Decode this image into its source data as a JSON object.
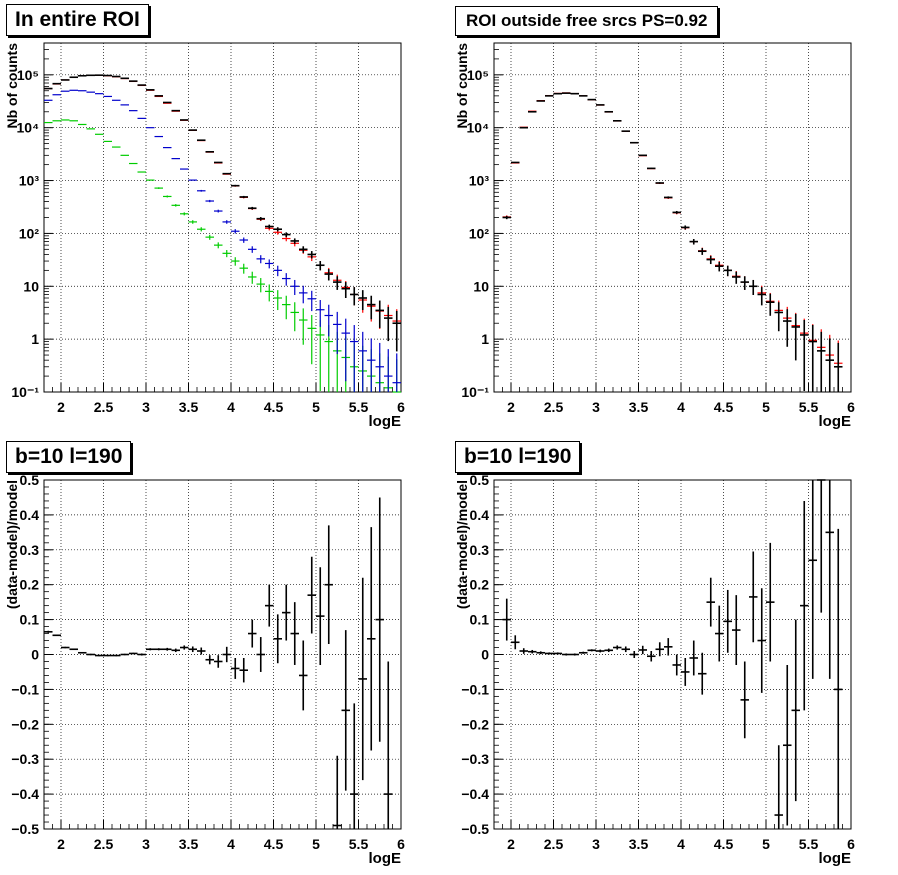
{
  "colors": {
    "data": "#000000",
    "total_model": "#ff0000",
    "component_blue": "#0000cc",
    "component_green": "#00cc00",
    "grid": "#000000",
    "frame": "#000000"
  },
  "chart_data": [
    {
      "type": "scatter",
      "title": "In entire ROI",
      "xlabel": "logE",
      "ylabel": "Nb of counts",
      "xlim": [
        1.8,
        6.0
      ],
      "ylim": [
        0.1,
        400000
      ],
      "yscale": "log",
      "grid": true,
      "xticks": [
        "2",
        "2.5",
        "3",
        "3.5",
        "4",
        "4.5",
        "5",
        "5.5",
        "6"
      ],
      "yticks": [
        "10⁻¹",
        "1",
        "10",
        "10²",
        "10³",
        "10⁴",
        "10⁵"
      ],
      "binwidth": 0.1,
      "series": [
        {
          "key": "data",
          "style": "cross",
          "x": [
            1.85,
            1.95,
            2.05,
            2.15,
            2.25,
            2.35,
            2.45,
            2.55,
            2.65,
            2.75,
            2.85,
            2.95,
            3.05,
            3.15,
            3.25,
            3.35,
            3.45,
            3.55,
            3.65,
            3.75,
            3.85,
            3.95,
            4.05,
            4.15,
            4.25,
            4.35,
            4.45,
            4.55,
            4.65,
            4.75,
            4.85,
            4.95,
            5.05,
            5.15,
            5.25,
            5.35,
            5.45,
            5.55,
            5.65,
            5.75,
            5.85,
            5.95
          ],
          "y": [
            55000,
            68000,
            80000,
            90000,
            96000,
            98000,
            98500,
            97000,
            93000,
            86000,
            76000,
            64000,
            52000,
            40000,
            30000,
            21000,
            14000,
            9000,
            5800,
            3500,
            2200,
            1350,
            800,
            490,
            300,
            190,
            135,
            120,
            95,
            72,
            50,
            40,
            25,
            17,
            12,
            9,
            7,
            6,
            4.5,
            3.5,
            2.5,
            2
          ]
        },
        {
          "key": "total_model",
          "style": "bar",
          "x": [
            1.85,
            1.95,
            2.05,
            2.15,
            2.25,
            2.35,
            2.45,
            2.55,
            2.65,
            2.75,
            2.85,
            2.95,
            3.05,
            3.15,
            3.25,
            3.35,
            3.45,
            3.55,
            3.65,
            3.75,
            3.85,
            3.95,
            4.05,
            4.15,
            4.25,
            4.35,
            4.45,
            4.55,
            4.65,
            4.75,
            4.85,
            4.95,
            5.05,
            5.15,
            5.25,
            5.35,
            5.45,
            5.55,
            5.65,
            5.75,
            5.85,
            5.95
          ],
          "y": [
            55000,
            67000,
            80000,
            90000,
            96000,
            98000,
            98000,
            96000,
            92000,
            85000,
            75000,
            63000,
            51000,
            39000,
            29000,
            20500,
            13800,
            8900,
            5700,
            3450,
            2150,
            1320,
            790,
            480,
            295,
            185,
            125,
            105,
            80,
            65,
            48,
            36,
            25,
            18,
            13,
            9.5,
            7,
            5.5,
            4.2,
            3.4,
            2.8,
            2.2
          ]
        },
        {
          "key": "component_blue",
          "style": "bar",
          "x": [
            1.85,
            1.95,
            2.05,
            2.15,
            2.25,
            2.35,
            2.45,
            2.55,
            2.65,
            2.75,
            2.85,
            2.95,
            3.05,
            3.15,
            3.25,
            3.35,
            3.45,
            3.55,
            3.65,
            3.75,
            3.85,
            3.95,
            4.05,
            4.15,
            4.25,
            4.35,
            4.45,
            4.55,
            4.65,
            4.75,
            4.85,
            4.95,
            5.05,
            5.15,
            5.25,
            5.35,
            5.45,
            5.55,
            5.65,
            5.75,
            5.85,
            5.95
          ],
          "y": [
            33000,
            42000,
            49000,
            51000,
            50000,
            47000,
            44000,
            39000,
            33000,
            27000,
            21000,
            15000,
            10000,
            6800,
            4200,
            2600,
            1650,
            1020,
            640,
            410,
            265,
            165,
            110,
            75,
            50,
            33,
            27,
            20,
            14,
            10,
            7.5,
            5.8,
            3.6,
            2.8,
            1.9,
            1.3,
            0.9,
            0.6,
            0.4,
            0.3,
            0.2,
            0.15
          ]
        },
        {
          "key": "component_green",
          "style": "bar",
          "x": [
            1.85,
            1.95,
            2.05,
            2.15,
            2.25,
            2.35,
            2.45,
            2.55,
            2.65,
            2.75,
            2.85,
            2.95,
            3.05,
            3.15,
            3.25,
            3.35,
            3.45,
            3.55,
            3.65,
            3.75,
            3.85,
            3.95,
            4.05,
            4.15,
            4.25,
            4.35,
            4.45,
            4.55,
            4.65,
            4.75,
            4.85,
            4.95,
            5.05,
            5.15,
            5.25,
            5.35,
            5.45,
            5.55,
            5.65,
            5.75,
            5.85,
            5.95
          ],
          "y": [
            12500,
            13500,
            14000,
            13500,
            11500,
            9500,
            7500,
            5500,
            4300,
            3000,
            2100,
            1450,
            1020,
            720,
            500,
            340,
            235,
            165,
            120,
            85,
            60,
            42,
            30,
            22,
            15,
            11,
            8,
            6,
            4.5,
            3.2,
            2.3,
            1.6,
            1.2,
            0.9,
            0.6,
            0.45,
            0.3,
            0.25,
            0.2,
            0.15,
            0.12,
            0.1
          ]
        }
      ]
    },
    {
      "type": "scatter",
      "title": "ROI outside free srcs PS=0.92",
      "xlabel": "logE",
      "ylabel": "Nb of counts",
      "xlim": [
        1.8,
        6.0
      ],
      "ylim": [
        0.1,
        400000
      ],
      "yscale": "log",
      "grid": true,
      "xticks": [
        "2",
        "2.5",
        "3",
        "3.5",
        "4",
        "4.5",
        "5",
        "5.5",
        "6"
      ],
      "yticks": [
        "10⁻¹",
        "1",
        "10",
        "10²",
        "10³",
        "10⁴",
        "10⁵"
      ],
      "binwidth": 0.1,
      "series": [
        {
          "key": "data",
          "style": "cross",
          "x": [
            1.95,
            2.05,
            2.15,
            2.25,
            2.35,
            2.45,
            2.55,
            2.65,
            2.75,
            2.85,
            2.95,
            3.05,
            3.15,
            3.25,
            3.35,
            3.45,
            3.55,
            3.65,
            3.75,
            3.85,
            3.95,
            4.05,
            4.15,
            4.25,
            4.35,
            4.45,
            4.55,
            4.65,
            4.75,
            4.85,
            4.95,
            5.05,
            5.15,
            5.25,
            5.35,
            5.45,
            5.55,
            5.65,
            5.75,
            5.85
          ],
          "y": [
            200,
            2200,
            10000,
            20000,
            32000,
            40000,
            44000,
            45000,
            44000,
            40000,
            34000,
            27000,
            20000,
            13500,
            8600,
            5200,
            3000,
            1700,
            900,
            480,
            250,
            130,
            70,
            46,
            32,
            24,
            20,
            15,
            12,
            10,
            7,
            5,
            3.2,
            2.2,
            1.7,
            1.2,
            0.9,
            0.6,
            0.4,
            0.3
          ]
        },
        {
          "key": "total_model",
          "style": "bar",
          "x": [
            1.95,
            2.05,
            2.15,
            2.25,
            2.35,
            2.45,
            2.55,
            2.65,
            2.75,
            2.85,
            2.95,
            3.05,
            3.15,
            3.25,
            3.35,
            3.45,
            3.55,
            3.65,
            3.75,
            3.85,
            3.95,
            4.05,
            4.15,
            4.25,
            4.35,
            4.45,
            4.55,
            4.65,
            4.75,
            4.85,
            4.95,
            5.05,
            5.15,
            5.25,
            5.35,
            5.45,
            5.55,
            5.65,
            5.75,
            5.85
          ],
          "y": [
            205,
            2150,
            10200,
            20500,
            32500,
            40500,
            44500,
            45500,
            44200,
            40000,
            33800,
            26800,
            19800,
            13400,
            8550,
            5150,
            2950,
            1680,
            890,
            470,
            245,
            128,
            70,
            47,
            33,
            25,
            20,
            15.5,
            12,
            10,
            7.5,
            5.2,
            3.5,
            2.5,
            1.8,
            1.3,
            0.95,
            0.7,
            0.5,
            0.35
          ]
        }
      ]
    },
    {
      "type": "scatter",
      "title": "b=10 l=190",
      "xlabel": "logE",
      "ylabel": "(data-model)/model",
      "xlim": [
        1.8,
        6.0
      ],
      "ylim": [
        -0.5,
        0.5
      ],
      "grid": true,
      "xticks": [
        "2",
        "2.5",
        "3",
        "3.5",
        "4",
        "4.5",
        "5",
        "5.5",
        "6"
      ],
      "yticks": [
        "−0.5",
        "−0.4",
        "−0.3",
        "−0.2",
        "−0.1",
        "0",
        "0.1",
        "0.2",
        "0.3",
        "0.4",
        "0.5"
      ],
      "binwidth": 0.1,
      "series": [
        {
          "key": "data",
          "style": "cross",
          "x": [
            1.85,
            1.95,
            2.05,
            2.15,
            2.25,
            2.35,
            2.45,
            2.55,
            2.65,
            2.75,
            2.85,
            2.95,
            3.05,
            3.15,
            3.25,
            3.35,
            3.45,
            3.55,
            3.65,
            3.75,
            3.85,
            3.95,
            4.05,
            4.15,
            4.25,
            4.35,
            4.45,
            4.55,
            4.65,
            4.75,
            4.85,
            4.95,
            5.05,
            5.15,
            5.25,
            5.35,
            5.45,
            5.55,
            5.65,
            5.75,
            5.85
          ],
          "y": [
            0.065,
            0.055,
            0.02,
            0.015,
            0.005,
            0.0,
            -0.003,
            -0.003,
            -0.003,
            0.0,
            0.003,
            0.0,
            0.015,
            0.015,
            0.015,
            0.012,
            0.02,
            0.015,
            0.01,
            -0.015,
            -0.02,
            0.0,
            -0.04,
            -0.045,
            0.06,
            0.0,
            0.14,
            0.045,
            0.12,
            0.06,
            -0.06,
            0.17,
            0.11,
            0.2,
            -0.49,
            -0.16,
            -0.4,
            -0.07,
            0.045,
            0.1,
            -0.4
          ],
          "err": [
            0.003,
            0.002,
            0.002,
            0.002,
            0.002,
            0.002,
            0.002,
            0.002,
            0.002,
            0.002,
            0.002,
            0.003,
            0.003,
            0.003,
            0.004,
            0.005,
            0.006,
            0.008,
            0.01,
            0.013,
            0.018,
            0.022,
            0.03,
            0.035,
            0.04,
            0.05,
            0.06,
            0.07,
            0.08,
            0.09,
            0.1,
            0.11,
            0.14,
            0.17,
            0.2,
            0.23,
            0.26,
            0.29,
            0.32,
            0.35,
            0.38
          ]
        }
      ]
    },
    {
      "type": "scatter",
      "title": "b=10 l=190",
      "xlabel": "logE",
      "ylabel": "(data-model)/model",
      "xlim": [
        1.8,
        6.0
      ],
      "ylim": [
        -0.5,
        0.5
      ],
      "grid": true,
      "xticks": [
        "2",
        "2.5",
        "3",
        "3.5",
        "4",
        "4.5",
        "5",
        "5.5",
        "6"
      ],
      "yticks": [
        "−0.5",
        "−0.4",
        "−0.3",
        "−0.2",
        "−0.1",
        "0",
        "0.1",
        "0.2",
        "0.3",
        "0.4",
        "0.5"
      ],
      "binwidth": 0.1,
      "series": [
        {
          "key": "data",
          "style": "cross",
          "x": [
            1.95,
            2.05,
            2.15,
            2.25,
            2.35,
            2.45,
            2.55,
            2.65,
            2.75,
            2.85,
            2.95,
            3.05,
            3.15,
            3.25,
            3.35,
            3.45,
            3.55,
            3.65,
            3.75,
            3.85,
            3.95,
            4.05,
            4.15,
            4.25,
            4.35,
            4.45,
            4.55,
            4.65,
            4.75,
            4.85,
            4.95,
            5.05,
            5.15,
            5.25,
            5.35,
            5.45,
            5.55,
            5.65,
            5.75,
            5.85
          ],
          "y": [
            0.1,
            0.035,
            0.01,
            0.008,
            0.005,
            0.003,
            0.003,
            0.0,
            0.0,
            0.005,
            0.012,
            0.01,
            0.012,
            0.02,
            0.015,
            0.0,
            0.013,
            -0.005,
            0.015,
            0.022,
            -0.03,
            -0.05,
            -0.01,
            -0.055,
            0.15,
            0.06,
            0.095,
            0.07,
            -0.13,
            0.165,
            0.04,
            0.15,
            -0.46,
            -0.26,
            -0.16,
            0.14,
            0.27,
            0.5,
            0.35,
            -0.1
          ],
          "err": [
            0.06,
            0.02,
            0.008,
            0.005,
            0.004,
            0.003,
            0.003,
            0.003,
            0.003,
            0.003,
            0.003,
            0.004,
            0.005,
            0.006,
            0.008,
            0.01,
            0.012,
            0.015,
            0.02,
            0.025,
            0.03,
            0.04,
            0.05,
            0.06,
            0.07,
            0.08,
            0.09,
            0.1,
            0.11,
            0.13,
            0.15,
            0.17,
            0.2,
            0.23,
            0.26,
            0.3,
            0.34,
            0.38,
            0.42,
            0.46
          ]
        }
      ]
    }
  ]
}
